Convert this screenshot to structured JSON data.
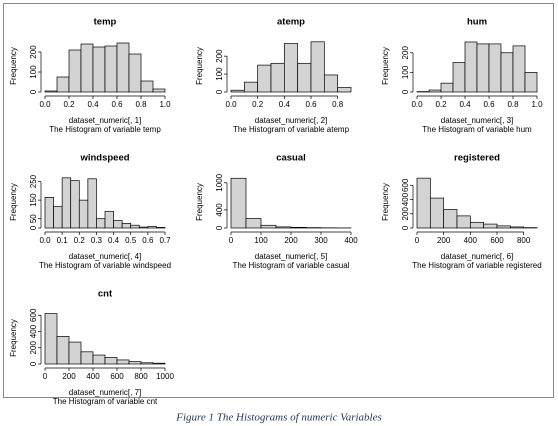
{
  "caption": "Figure 1 The Histograms of numeric Variables",
  "chart_data": [
    {
      "type": "histogram",
      "title": "temp",
      "xlabel": "dataset_numeric[, 1]",
      "subtitle": "The Histogram of variable temp",
      "ylabel": "Frequency",
      "color": "#d3d3d3",
      "bins": [
        0,
        0.1,
        0.2,
        0.3,
        0.4,
        0.5,
        0.6,
        0.7,
        0.8,
        0.9,
        1
      ],
      "counts": [
        5,
        75,
        210,
        240,
        225,
        230,
        245,
        190,
        55,
        15
      ],
      "xlim": [
        0,
        1
      ],
      "xticks": [
        {
          "value": 0,
          "label": "0.0"
        },
        0.2,
        0.4,
        0.6,
        0.8,
        {
          "value": 1,
          "label": "1.0"
        }
      ],
      "ylim": [
        0,
        260
      ],
      "yticks": [
        0,
        100,
        200
      ]
    },
    {
      "type": "histogram",
      "title": "atemp",
      "xlabel": "dataset_numeric[, 2]",
      "subtitle": "The Histogram of variable atemp",
      "ylabel": "Frequency",
      "color": "#d3d3d3",
      "bins": [
        0,
        0.1,
        0.2,
        0.3,
        0.4,
        0.5,
        0.6,
        0.7,
        0.8,
        0.9
      ],
      "counts": [
        10,
        55,
        150,
        160,
        270,
        160,
        280,
        95,
        25
      ],
      "xlim": [
        0,
        0.9
      ],
      "xticks": [
        {
          "value": 0,
          "label": "0.0"
        },
        0.2,
        0.4,
        0.6,
        0.8
      ],
      "ylim": [
        0,
        290
      ],
      "yticks": [
        0,
        100,
        200
      ]
    },
    {
      "type": "histogram",
      "title": "hum",
      "xlabel": "dataset_numeric[, 3]",
      "subtitle": "The Histogram of variable hum",
      "ylabel": "Frequency",
      "color": "#d3d3d3",
      "bins": [
        0,
        0.1,
        0.2,
        0.3,
        0.4,
        0.5,
        0.6,
        0.7,
        0.8,
        0.9,
        1
      ],
      "counts": [
        2,
        10,
        45,
        150,
        255,
        245,
        245,
        200,
        235,
        100
      ],
      "xlim": [
        0,
        1
      ],
      "xticks": [
        {
          "value": 0,
          "label": "0.0"
        },
        0.2,
        0.4,
        0.6,
        0.8,
        {
          "value": 1,
          "label": "1.0"
        }
      ],
      "ylim": [
        0,
        265
      ],
      "yticks": [
        0,
        100,
        200
      ]
    },
    {
      "type": "histogram",
      "title": "windspeed",
      "xlabel": "dataset_numeric[, 4]",
      "subtitle": "The Histogram of variable windspeed",
      "ylabel": "Frequency",
      "color": "#d3d3d3",
      "bins": [
        0,
        0.05,
        0.1,
        0.15,
        0.2,
        0.25,
        0.3,
        0.35,
        0.4,
        0.45,
        0.5,
        0.55,
        0.6,
        0.65,
        0.7
      ],
      "counts": [
        165,
        115,
        270,
        255,
        150,
        265,
        50,
        90,
        40,
        25,
        15,
        5,
        8,
        3
      ],
      "xlim": [
        0,
        0.7
      ],
      "xticks": [
        {
          "value": 0,
          "label": "0.0"
        },
        0.1,
        0.2,
        0.3,
        0.4,
        0.5,
        0.6,
        0.7
      ],
      "ylim": [
        0,
        280
      ],
      "yticks": [
        0,
        50,
        150,
        250
      ]
    },
    {
      "type": "histogram",
      "title": "casual",
      "xlabel": "dataset_numeric[, 5]",
      "subtitle": "The Histogram of variable casual",
      "ylabel": "Frequency",
      "color": "#d3d3d3",
      "bins": [
        0,
        50,
        100,
        150,
        200,
        250,
        300,
        350,
        400
      ],
      "counts": [
        1100,
        210,
        60,
        25,
        15,
        8,
        4,
        2
      ],
      "xlim": [
        0,
        400
      ],
      "xticks": [
        0,
        100,
        200,
        300,
        400
      ],
      "ylim": [
        0,
        1150
      ],
      "yticks": [
        0,
        400,
        1000
      ]
    },
    {
      "type": "histogram",
      "title": "registered",
      "xlabel": "dataset_numeric[, 6]",
      "subtitle": "The Histogram of variable registered",
      "ylabel": "Frequency",
      "color": "#d3d3d3",
      "bins": [
        0,
        100,
        200,
        300,
        400,
        500,
        600,
        700,
        800,
        900
      ],
      "counts": [
        700,
        420,
        260,
        170,
        80,
        55,
        30,
        15,
        5
      ],
      "xlim": [
        0,
        900
      ],
      "xticks": [
        0,
        200,
        400,
        600,
        800
      ],
      "ylim": [
        0,
        730
      ],
      "yticks": [
        0,
        200,
        400,
        600
      ]
    },
    {
      "type": "histogram",
      "title": "cnt",
      "xlabel": "dataset_numeric[, 7]",
      "subtitle": "The Histogram of variable cnt",
      "ylabel": "Frequency",
      "color": "#d3d3d3",
      "bins": [
        0,
        100,
        200,
        300,
        400,
        500,
        600,
        700,
        800,
        900,
        1000
      ],
      "counts": [
        620,
        340,
        270,
        150,
        110,
        80,
        50,
        30,
        15,
        10
      ],
      "xlim": [
        0,
        1000
      ],
      "xticks": [
        0,
        200,
        400,
        600,
        800,
        1000
      ],
      "ylim": [
        0,
        640
      ],
      "yticks": [
        0,
        200,
        400,
        600
      ]
    }
  ]
}
